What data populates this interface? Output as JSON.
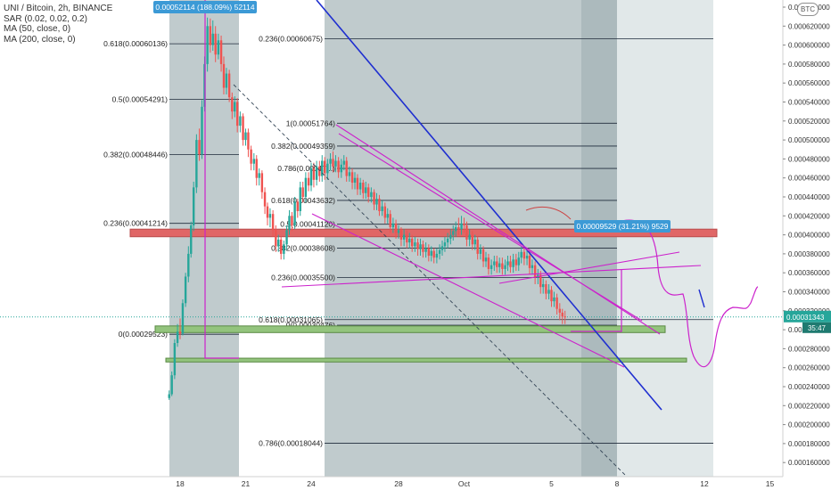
{
  "legend": {
    "symbol": "UNI / Bitcoin, 2h, BINANCE",
    "sar": "SAR (0.02, 0.02, 0.2)",
    "ma50": "MA (50, close, 0)",
    "ma200": "MA (200, close, 0)"
  },
  "currency_badge": "BTC",
  "colors": {
    "up": "#26a69a",
    "down": "#ef5350",
    "fib": "#1e2a3a",
    "fib_label": "#222222",
    "shade_dark": "#8ca0a4",
    "shade_light": "#c9d5d7",
    "blue_line": "#1f2fd0",
    "magenta": "#cc22cc",
    "resistance_zone": "#e06666",
    "support_zone": "#93c47d",
    "price_tag": "#3c9ad6",
    "last_price_tag": "#26a69a"
  },
  "chart_data": {
    "type": "candlestick",
    "price_axis": {
      "min": 0.00016,
      "max": 0.00064,
      "step": 2e-06,
      "ticks": [
        "0.000640000",
        "0.000620000",
        "0.000600000",
        "0.000580000",
        "0.000560000",
        "0.000540000",
        "0.000520000",
        "0.000500000",
        "0.000480000",
        "0.000460000",
        "0.000440000",
        "0.000420000",
        "0.000400000",
        "0.000380000",
        "0.000360000",
        "0.000340000",
        "0.000320000",
        "0.000300000",
        "0.000280000",
        "0.000260000",
        "0.000240000",
        "0.000220000",
        "0.000200000",
        "0.000180000",
        "0.000160000"
      ]
    },
    "time_axis": {
      "ticks": [
        {
          "label": "18",
          "day": 18
        },
        {
          "label": "21",
          "day": 21
        },
        {
          "label": "24",
          "day": 24
        },
        {
          "label": "28",
          "day": 28
        },
        {
          "label": "Oct",
          "day": 31
        },
        {
          "label": "5",
          "day": 35
        },
        {
          "label": "8",
          "day": 38
        },
        {
          "label": "12",
          "day": 42
        },
        {
          "label": "15",
          "day": 45
        }
      ]
    },
    "fib_retracement_1": [
      {
        "label": "0.618(0.00060136)",
        "price": 0.00060136
      },
      {
        "label": "0.5(0.00054291)",
        "price": 0.00054291
      },
      {
        "label": "0.382(0.00048446)",
        "price": 0.00048446
      },
      {
        "label": "0.236(0.00041214)",
        "price": 0.00041214
      },
      {
        "label": "0(0.00029523)",
        "price": 0.00029523
      }
    ],
    "fib_retracement_2": [
      {
        "label": "0.236(0.00060675)",
        "price": 0.00060675
      },
      {
        "label": "0.618(0.00031065)",
        "price": 0.00031065
      },
      {
        "label": "0.786(0.00018044)",
        "price": 0.00018044
      }
    ],
    "fib_retracement_3": [
      {
        "label": "1(0.00051764)",
        "price": 0.00051764
      },
      {
        "label": "0.382(0.00049359)",
        "price": 0.00049359
      },
      {
        "label": "0.786(0.00047...)",
        "price": 0.00047
      },
      {
        "label": "0.618(0.00043632)",
        "price": 0.00043632
      },
      {
        "label": "0.5(0.00041120)",
        "price": 0.0004112
      },
      {
        "label": "0.382(0.00038608)",
        "price": 0.00038608
      },
      {
        "label": "0.236(0.00035500)",
        "price": 0.000355
      },
      {
        "label": "0(0.00030476)",
        "price": 0.00030476
      }
    ],
    "top_tag": "0.00052114 (188.09%) 52114",
    "measure_tag": "0.00009529 (31.21%) 9529",
    "last_price": "0.00031343",
    "countdown": "35:47",
    "resistance_zone": [
      0.000398,
      0.000406
    ],
    "support_zone_1": [
      0.000297,
      0.000304
    ],
    "support_zone_2": [
      0.000266,
      0.00027
    ],
    "candles": [
      [
        17.5,
        0.000228,
        0.000232,
        0.000236,
        0.000226
      ],
      [
        17.62,
        0.000232,
        0.000252,
        0.000256,
        0.00023
      ],
      [
        17.75,
        0.000252,
        0.000286,
        0.00029,
        0.000248
      ],
      [
        17.88,
        0.000286,
        0.000298,
        0.000306,
        0.000282
      ],
      [
        18.0,
        0.000298,
        0.000296,
        0.000312,
        0.00029
      ],
      [
        18.12,
        0.000296,
        0.000328,
        0.000332,
        0.000294
      ],
      [
        18.25,
        0.000328,
        0.000356,
        0.00036,
        0.000324
      ],
      [
        18.38,
        0.000356,
        0.00038,
        0.000388,
        0.00035
      ],
      [
        18.5,
        0.00038,
        0.00041,
        0.000414,
        0.000376
      ],
      [
        18.62,
        0.00041,
        0.00045,
        0.000456,
        0.000404
      ],
      [
        18.75,
        0.00045,
        0.0005,
        0.000506,
        0.000444
      ],
      [
        18.88,
        0.0005,
        0.000485,
        0.000512,
        0.000478
      ],
      [
        19.0,
        0.000485,
        0.000535,
        0.000542,
        0.00048
      ],
      [
        19.12,
        0.000535,
        0.00058,
        0.000588,
        0.00053
      ],
      [
        19.25,
        0.00058,
        0.00062,
        0.000629,
        0.000572
      ],
      [
        19.38,
        0.00062,
        0.0006,
        0.000628,
        0.000592
      ],
      [
        19.5,
        0.0006,
        0.000612,
        0.000626,
        0.000594
      ],
      [
        19.62,
        0.000612,
        0.00059,
        0.00062,
        0.000582
      ],
      [
        19.75,
        0.00059,
        0.000605,
        0.000612,
        0.000585
      ],
      [
        19.88,
        0.000605,
        0.00058,
        0.00061,
        0.000572
      ],
      [
        20.0,
        0.00058,
        0.000555,
        0.000588,
        0.000548
      ],
      [
        20.12,
        0.000555,
        0.00057,
        0.000576,
        0.000548
      ],
      [
        20.25,
        0.00057,
        0.000545,
        0.000574,
        0.00054
      ],
      [
        20.38,
        0.000545,
        0.00053,
        0.00055,
        0.000522
      ],
      [
        20.5,
        0.00053,
        0.00054,
        0.000546,
        0.000524
      ],
      [
        20.62,
        0.00054,
        0.000515,
        0.000544,
        0.000508
      ],
      [
        20.75,
        0.000515,
        0.000525,
        0.00053,
        0.000508
      ],
      [
        20.88,
        0.000525,
        0.0005,
        0.000528,
        0.000494
      ],
      [
        21.0,
        0.0005,
        0.000508,
        0.000512,
        0.000494
      ],
      [
        21.12,
        0.000508,
        0.00049,
        0.000512,
        0.000482
      ],
      [
        21.25,
        0.00049,
        0.000475,
        0.000494,
        0.000468
      ],
      [
        21.38,
        0.000475,
        0.00048,
        0.000486,
        0.000468
      ],
      [
        21.5,
        0.00048,
        0.00046,
        0.000484,
        0.000452
      ],
      [
        21.62,
        0.00046,
        0.000465,
        0.00047,
        0.000452
      ],
      [
        21.75,
        0.000465,
        0.000445,
        0.000468,
        0.000438
      ],
      [
        21.88,
        0.000445,
        0.00043,
        0.00045,
        0.000422
      ],
      [
        22.0,
        0.00043,
        0.000418,
        0.000434,
        0.00041
      ],
      [
        22.12,
        0.000418,
        0.000422,
        0.000428,
        0.000408
      ],
      [
        22.25,
        0.000422,
        0.000405,
        0.000426,
        0.000398
      ],
      [
        22.38,
        0.000405,
        0.000388,
        0.00041,
        0.000382
      ],
      [
        22.5,
        0.000388,
        0.000395,
        0.0004,
        0.000382
      ],
      [
        22.62,
        0.000395,
        0.00038,
        0.000398,
        0.000374
      ],
      [
        22.75,
        0.00038,
        0.00039,
        0.000394,
        0.000374
      ],
      [
        22.88,
        0.00039,
        0.000405,
        0.00041,
        0.000384
      ],
      [
        23.0,
        0.000405,
        0.00042,
        0.000426,
        0.0004
      ],
      [
        23.12,
        0.00042,
        0.00041,
        0.000424,
        0.000404
      ],
      [
        23.25,
        0.00041,
        0.000435,
        0.00044,
        0.000406
      ],
      [
        23.38,
        0.000435,
        0.000425,
        0.000438,
        0.000418
      ],
      [
        23.5,
        0.000425,
        0.00045,
        0.000456,
        0.00042
      ],
      [
        23.62,
        0.00045,
        0.00044,
        0.000456,
        0.000434
      ],
      [
        23.75,
        0.00044,
        0.00046,
        0.000466,
        0.000434
      ],
      [
        23.88,
        0.00046,
        0.000452,
        0.000466,
        0.000446
      ],
      [
        24.0,
        0.000452,
        0.00047,
        0.000476,
        0.000446
      ],
      [
        24.12,
        0.00047,
        0.000458,
        0.000476,
        0.00045
      ],
      [
        24.25,
        0.000458,
        0.000472,
        0.000478,
        0.000452
      ],
      [
        24.38,
        0.000472,
        0.000462,
        0.000478,
        0.000456
      ],
      [
        24.5,
        0.000462,
        0.000478,
        0.000484,
        0.000456
      ],
      [
        24.62,
        0.000478,
        0.000465,
        0.000482,
        0.000458
      ],
      [
        24.75,
        0.000465,
        0.000475,
        0.00048,
        0.000458
      ],
      [
        24.88,
        0.000475,
        0.00048,
        0.000486,
        0.000468
      ],
      [
        25.0,
        0.00048,
        0.000472,
        0.000488,
        0.000466
      ],
      [
        25.12,
        0.000472,
        0.000478,
        0.000484,
        0.000466
      ],
      [
        25.25,
        0.000478,
        0.000466,
        0.000482,
        0.00046
      ],
      [
        25.38,
        0.000466,
        0.000474,
        0.00048,
        0.00046
      ],
      [
        25.5,
        0.000474,
        0.000478,
        0.000484,
        0.000468
      ],
      [
        25.62,
        0.000478,
        0.000462,
        0.000482,
        0.000456
      ],
      [
        25.75,
        0.000462,
        0.000466,
        0.000472,
        0.000456
      ],
      [
        25.88,
        0.000466,
        0.000455,
        0.00047,
        0.000448
      ],
      [
        26.0,
        0.000455,
        0.00046,
        0.000466,
        0.000448
      ],
      [
        26.12,
        0.00046,
        0.000448,
        0.000464,
        0.000442
      ],
      [
        26.25,
        0.000448,
        0.000455,
        0.00046,
        0.000442
      ],
      [
        26.38,
        0.000455,
        0.000444,
        0.000458,
        0.000438
      ],
      [
        26.5,
        0.000444,
        0.00045,
        0.000456,
        0.000438
      ],
      [
        26.62,
        0.00045,
        0.00044,
        0.000454,
        0.000434
      ],
      [
        26.75,
        0.00044,
        0.000445,
        0.00045,
        0.000434
      ],
      [
        26.88,
        0.000445,
        0.000432,
        0.000448,
        0.000426
      ],
      [
        27.0,
        0.000432,
        0.000438,
        0.000444,
        0.000426
      ],
      [
        27.12,
        0.000438,
        0.000425,
        0.000442,
        0.00042
      ],
      [
        27.25,
        0.000425,
        0.00043,
        0.000436,
        0.00042
      ],
      [
        27.38,
        0.00043,
        0.000418,
        0.000434,
        0.000412
      ],
      [
        27.5,
        0.000418,
        0.000422,
        0.000428,
        0.000412
      ],
      [
        27.62,
        0.000422,
        0.000408,
        0.000426,
        0.000402
      ],
      [
        27.75,
        0.000408,
        0.000412,
        0.000418,
        0.000402
      ],
      [
        27.88,
        0.000412,
        0.000402,
        0.000416,
        0.000396
      ],
      [
        28.0,
        0.000402,
        0.000405,
        0.00041,
        0.000396
      ],
      [
        28.12,
        0.000405,
        0.000395,
        0.000408,
        0.000388
      ],
      [
        28.25,
        0.000395,
        0.0004,
        0.000406,
        0.000388
      ],
      [
        28.38,
        0.0004,
        0.000392,
        0.000404,
        0.000386
      ],
      [
        28.5,
        0.000392,
        0.000396,
        0.000402,
        0.000386
      ],
      [
        28.62,
        0.000396,
        0.000388,
        0.0004,
        0.000382
      ],
      [
        28.75,
        0.000388,
        0.000392,
        0.000398,
        0.000382
      ],
      [
        28.88,
        0.000392,
        0.000385,
        0.000396,
        0.000378
      ],
      [
        29.0,
        0.000385,
        0.00039,
        0.000396,
        0.000378
      ],
      [
        29.12,
        0.00039,
        0.000382,
        0.000394,
        0.000376
      ],
      [
        29.25,
        0.000382,
        0.000386,
        0.000392,
        0.000376
      ],
      [
        29.38,
        0.000386,
        0.000378,
        0.00039,
        0.000372
      ],
      [
        29.5,
        0.000378,
        0.000383,
        0.000388,
        0.000372
      ],
      [
        29.62,
        0.000383,
        0.000376,
        0.000386,
        0.00037
      ],
      [
        29.75,
        0.000376,
        0.00038,
        0.000386,
        0.00037
      ],
      [
        29.88,
        0.00038,
        0.000384,
        0.00039,
        0.000374
      ],
      [
        30.0,
        0.000384,
        0.000388,
        0.000394,
        0.000378
      ],
      [
        30.12,
        0.000388,
        0.000392,
        0.000398,
        0.000382
      ],
      [
        30.25,
        0.000392,
        0.000396,
        0.000402,
        0.000386
      ],
      [
        30.38,
        0.000396,
        0.0004,
        0.000406,
        0.00039
      ],
      [
        30.5,
        0.0004,
        0.000404,
        0.00041,
        0.000394
      ],
      [
        30.62,
        0.000404,
        0.000408,
        0.000414,
        0.000398
      ],
      [
        30.75,
        0.000408,
        0.000406,
        0.000418,
        0.0004
      ],
      [
        30.88,
        0.000406,
        0.000412,
        0.00042,
        0.0004
      ],
      [
        31.0,
        0.000412,
        0.00041,
        0.000418,
        0.000402
      ],
      [
        31.12,
        0.00041,
        0.000395,
        0.000414,
        0.000388
      ],
      [
        31.25,
        0.000395,
        0.0004,
        0.000406,
        0.000388
      ],
      [
        31.38,
        0.0004,
        0.00039,
        0.000404,
        0.000384
      ],
      [
        31.5,
        0.00039,
        0.000395,
        0.0004,
        0.000384
      ],
      [
        31.62,
        0.000395,
        0.00038,
        0.000398,
        0.000374
      ],
      [
        31.75,
        0.00038,
        0.000385,
        0.00039,
        0.000374
      ],
      [
        31.88,
        0.000385,
        0.000372,
        0.000388,
        0.000366
      ],
      [
        32.0,
        0.000372,
        0.000376,
        0.000382,
        0.000366
      ],
      [
        32.12,
        0.000376,
        0.000364,
        0.00038,
        0.000358
      ],
      [
        32.25,
        0.000364,
        0.000368,
        0.000374,
        0.000358
      ],
      [
        32.38,
        0.000368,
        0.000372,
        0.000378,
        0.000362
      ],
      [
        32.5,
        0.000372,
        0.000366,
        0.000378,
        0.00036
      ],
      [
        32.62,
        0.000366,
        0.00037,
        0.000376,
        0.00036
      ],
      [
        32.75,
        0.00037,
        0.000364,
        0.000376,
        0.000358
      ],
      [
        32.88,
        0.000364,
        0.000368,
        0.000374,
        0.000358
      ],
      [
        33.0,
        0.000368,
        0.000372,
        0.000378,
        0.000362
      ],
      [
        33.12,
        0.000372,
        0.000366,
        0.000378,
        0.00036
      ],
      [
        33.25,
        0.000366,
        0.000374,
        0.00038,
        0.00036
      ],
      [
        33.38,
        0.000374,
        0.000368,
        0.00038,
        0.000362
      ],
      [
        33.5,
        0.000368,
        0.000376,
        0.000382,
        0.000362
      ],
      [
        33.62,
        0.000376,
        0.000382,
        0.000388,
        0.00037
      ],
      [
        33.75,
        0.000382,
        0.000375,
        0.000388,
        0.000368
      ],
      [
        33.88,
        0.000375,
        0.000378,
        0.000384,
        0.000368
      ],
      [
        34.0,
        0.000378,
        0.000365,
        0.000382,
        0.000358
      ],
      [
        34.12,
        0.000365,
        0.000368,
        0.000374,
        0.000358
      ],
      [
        34.25,
        0.000368,
        0.000355,
        0.000372,
        0.000348
      ],
      [
        34.38,
        0.000355,
        0.000358,
        0.000364,
        0.000348
      ],
      [
        34.5,
        0.000358,
        0.000345,
        0.000362,
        0.000338
      ],
      [
        34.62,
        0.000345,
        0.000348,
        0.000354,
        0.000338
      ],
      [
        34.75,
        0.000348,
        0.000338,
        0.000352,
        0.000332
      ],
      [
        34.88,
        0.000338,
        0.000342,
        0.000348,
        0.000332
      ],
      [
        35.0,
        0.000342,
        0.00033,
        0.000346,
        0.000324
      ],
      [
        35.12,
        0.00033,
        0.000334,
        0.00034,
        0.000324
      ],
      [
        35.25,
        0.000334,
        0.000322,
        0.000338,
        0.000316
      ],
      [
        35.38,
        0.000322,
        0.000318,
        0.000328,
        0.00031
      ],
      [
        35.5,
        0.000318,
        0.000314,
        0.000322,
        0.000306
      ],
      [
        35.62,
        0.000314,
        0.00031343,
        0.00032,
        0.000306
      ]
    ]
  }
}
